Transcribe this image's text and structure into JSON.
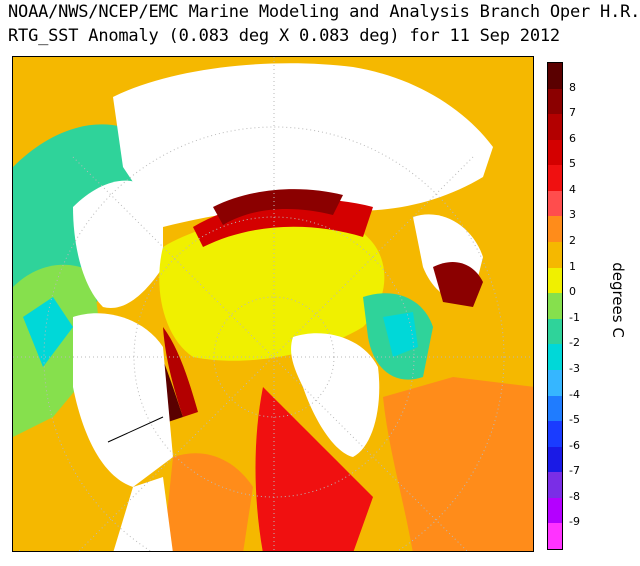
{
  "header": {
    "title_line1": "NOAA/NWS/NCEP/EMC Marine Modeling and Analysis Branch Oper H.R.",
    "title_line2": "RTG_SST Anomaly (0.083 deg X 0.083 deg) for 11 Sep 2012"
  },
  "colorbar": {
    "unit_label": "degrees C",
    "ticks": [
      "8",
      "7",
      "6",
      "5",
      "4",
      "3",
      "2",
      "1",
      "0",
      "-1",
      "-2",
      "-3",
      "-4",
      "-5",
      "-6",
      "-7",
      "-8",
      "-9"
    ],
    "colors": [
      "#5a0000",
      "#8b0000",
      "#b30000",
      "#d40000",
      "#f01010",
      "#ff4d4d",
      "#ff8c1a",
      "#f5b800",
      "#f0f000",
      "#86e04d",
      "#2fd39a",
      "#00d8d8",
      "#36b6ff",
      "#1f7cff",
      "#1a3cff",
      "#1a1ae6",
      "#7a2ee6",
      "#b400ff",
      "#ff33ff"
    ]
  },
  "map": {
    "projection": "polar-stereographic",
    "region": "Arctic",
    "land_color": "#ffffff",
    "grid_color": "#b8b8b8"
  }
}
